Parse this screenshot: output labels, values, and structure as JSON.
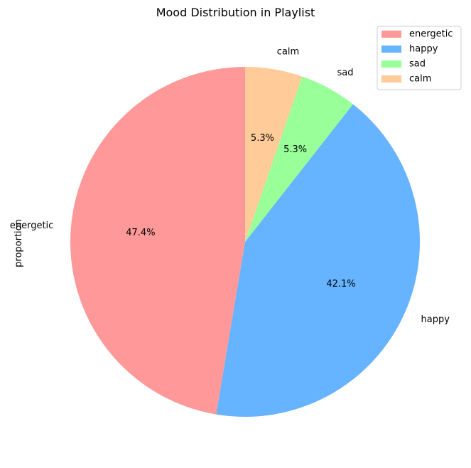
{
  "chart_data": {
    "type": "pie",
    "title": "Mood Distribution in Playlist",
    "ylabel": "proportion",
    "categories": [
      "energetic",
      "happy",
      "sad",
      "calm"
    ],
    "values": [
      47.4,
      42.1,
      5.3,
      5.3
    ],
    "percent_labels": [
      "47.4%",
      "42.1%",
      "5.3%",
      "5.3%"
    ],
    "colors": [
      "#ff9999",
      "#66b3ff",
      "#99ff99",
      "#ffcc99"
    ],
    "start_angle_deg": 90,
    "direction": "counterclockwise",
    "legend": {
      "placement": "top-right",
      "entries": [
        "energetic",
        "happy",
        "sad",
        "calm"
      ]
    }
  }
}
